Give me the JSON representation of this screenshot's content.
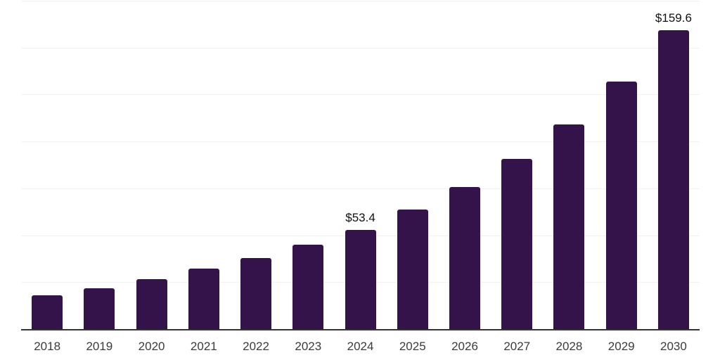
{
  "chart_data": {
    "type": "bar",
    "title": "",
    "xlabel": "",
    "ylabel": "",
    "categories": [
      "2018",
      "2019",
      "2020",
      "2021",
      "2022",
      "2023",
      "2024",
      "2025",
      "2026",
      "2027",
      "2028",
      "2029",
      "2030"
    ],
    "values": [
      18.3,
      22.1,
      26.9,
      32.5,
      38.1,
      45.2,
      53.4,
      63.9,
      75.9,
      90.9,
      109.6,
      132.4,
      159.6
    ],
    "bar_labels": [
      "",
      "",
      "",
      "",
      "",
      "",
      "$53.4",
      "",
      "",
      "",
      "",
      "",
      "$159.6"
    ],
    "ylim": [
      0,
      175
    ],
    "gridline_step": 25,
    "grid": true,
    "legend": false,
    "colors": {
      "bar": "#33134a",
      "axis": "#343434",
      "grid": "#f2f2f2",
      "tick_label": "#3b3b3b",
      "value_label": "#111111",
      "background": "#ffffff"
    }
  }
}
